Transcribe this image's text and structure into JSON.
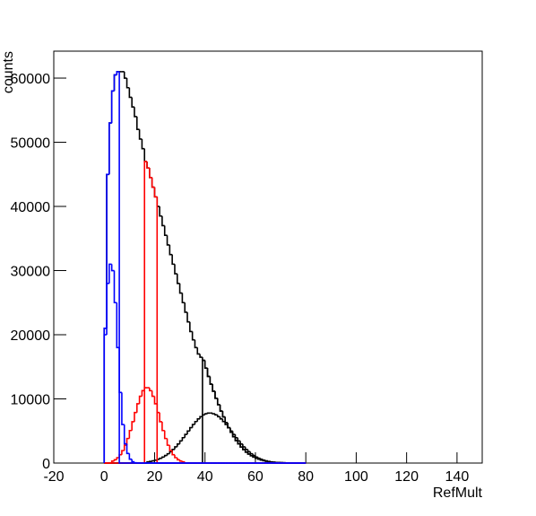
{
  "chart_data": {
    "type": "histogram",
    "xlabel": "RefMult",
    "ylabel": "counts",
    "xlim": [
      -20,
      150
    ],
    "ylim": [
      0,
      64200
    ],
    "xticks": [
      -20,
      0,
      20,
      40,
      60,
      80,
      100,
      120,
      140
    ],
    "yticks": [
      0,
      10000,
      20000,
      30000,
      40000,
      50000,
      60000
    ],
    "bins": [
      0,
      1,
      2,
      3,
      4,
      5,
      6,
      7,
      8,
      9,
      10,
      11,
      12,
      13,
      14,
      15,
      16,
      17,
      18,
      19,
      20,
      21,
      22,
      23,
      24,
      25,
      26,
      27,
      28,
      29,
      30,
      31,
      32,
      33,
      34,
      35,
      36,
      37,
      38,
      39,
      40,
      41,
      42,
      43,
      44,
      45,
      46,
      47,
      48,
      49,
      50,
      51,
      52,
      53,
      54,
      55,
      56,
      57,
      58,
      59,
      60,
      61,
      62,
      63,
      64,
      65,
      66,
      67,
      68,
      69,
      70,
      71,
      72,
      73,
      74,
      75,
      76,
      77,
      78,
      79,
      80
    ],
    "series": [
      {
        "color": "#000000",
        "values": [
          21000,
          45000,
          53000,
          58000,
          60500,
          61000,
          61000,
          61000,
          60000,
          58500,
          57000,
          55500,
          54000,
          52000,
          50500,
          49000,
          47000,
          46000,
          44500,
          43000,
          41500,
          40000,
          38500,
          37000,
          35500,
          34000,
          32500,
          31000,
          29500,
          28000,
          26500,
          25000,
          23500,
          22000,
          20500,
          19200,
          18000,
          17000,
          16500,
          16000,
          14800,
          13500,
          12300,
          11200,
          10100,
          9100,
          8100,
          7200,
          6300,
          5500,
          4800,
          4100,
          3500,
          3000,
          2500,
          2100,
          1700,
          1400,
          1150,
          930,
          750,
          600,
          470,
          370,
          290,
          220,
          170,
          130,
          100,
          75,
          55,
          40,
          30,
          20,
          15,
          10,
          7,
          5,
          3,
          2
        ]
      },
      {
        "color": "#000000",
        "values": [
          0,
          0,
          0,
          0,
          0,
          0,
          0,
          0,
          0,
          0,
          0,
          0,
          0,
          0,
          0,
          0,
          0,
          0,
          0,
          0,
          0,
          0,
          0,
          0,
          0,
          0,
          0,
          0,
          0,
          0,
          0,
          0,
          0,
          0,
          0,
          0,
          0,
          0,
          0,
          16000,
          14800,
          13500,
          12300,
          11200,
          10100,
          9100,
          8100,
          7200,
          6300,
          5500,
          4800,
          4100,
          3500,
          3000,
          2500,
          2100,
          1700,
          1400,
          1150,
          930,
          750,
          600,
          470,
          370,
          290,
          220,
          170,
          130,
          100,
          75,
          55,
          40,
          30,
          20,
          15,
          10,
          7,
          5,
          3,
          2
        ]
      },
      {
        "color": "#000000",
        "values": [
          0,
          0,
          0,
          0,
          0,
          0,
          0,
          0,
          0,
          0,
          0,
          0,
          0,
          0,
          0,
          0,
          0,
          190,
          260,
          340,
          450,
          580,
          750,
          940,
          1180,
          1450,
          1770,
          2130,
          2530,
          2970,
          3450,
          3950,
          4470,
          4990,
          5510,
          6010,
          6470,
          6880,
          7230,
          7510,
          7690,
          7790,
          7790,
          7690,
          7510,
          7230,
          6880,
          6470,
          6010,
          5510,
          4990,
          4470,
          3950,
          3450,
          2970,
          2530,
          2130,
          1770,
          1450,
          1180,
          940,
          750,
          580,
          450,
          340,
          260,
          190,
          0,
          0,
          0,
          0,
          0,
          0,
          0,
          0,
          0,
          0,
          0,
          0,
          0
        ]
      },
      {
        "color": "#ff0000",
        "values": [
          0,
          0,
          0,
          0,
          0,
          0,
          0,
          0,
          0,
          0,
          0,
          0,
          0,
          0,
          0,
          0,
          47000,
          46000,
          44500,
          43000,
          41500,
          0,
          0,
          0,
          0,
          0,
          0,
          0,
          0,
          0,
          0,
          0,
          0,
          0,
          0,
          0,
          0,
          0,
          0,
          0,
          0,
          0,
          0,
          0,
          0,
          0,
          0,
          0,
          0,
          0,
          0,
          0,
          0,
          0,
          0,
          0,
          0,
          0,
          0,
          0,
          0,
          0,
          0,
          0,
          0,
          0,
          0,
          0,
          0,
          0,
          0,
          0,
          0,
          0,
          0,
          0,
          0,
          0,
          0,
          0
        ]
      },
      {
        "color": "#ff0000",
        "values": [
          0,
          0,
          0,
          310,
          520,
          840,
          1300,
          1940,
          2780,
          3830,
          5070,
          6440,
          7870,
          9240,
          10410,
          11280,
          11740,
          11740,
          11280,
          10410,
          9240,
          7870,
          6440,
          5070,
          3830,
          2780,
          1940,
          1300,
          840,
          520,
          310,
          180,
          0,
          0,
          0,
          0,
          0,
          0,
          0,
          0,
          0,
          0,
          0,
          0,
          0,
          0,
          0,
          0,
          0,
          0,
          0,
          0,
          0,
          0,
          0,
          0,
          0,
          0,
          0,
          0,
          0,
          0,
          0,
          0,
          0,
          0,
          0,
          0,
          0,
          0,
          0,
          0,
          0,
          0,
          0,
          0,
          0,
          0,
          0,
          0
        ]
      },
      {
        "color": "#0000ff",
        "values": [
          21000,
          45000,
          53000,
          58000,
          60500,
          61000,
          0,
          0,
          0,
          0,
          0,
          0,
          0,
          0,
          0,
          0,
          0,
          0,
          0,
          0,
          0,
          0,
          0,
          0,
          0,
          0,
          0,
          0,
          0,
          0,
          0,
          0,
          0,
          0,
          0,
          0,
          0,
          0,
          0,
          0,
          0,
          0,
          0,
          0,
          0,
          0,
          0,
          0,
          0,
          0,
          0,
          0,
          0,
          0,
          0,
          0,
          0,
          0,
          0,
          0,
          0,
          0,
          0,
          0,
          0,
          0,
          0,
          0,
          0,
          0,
          0,
          0,
          0,
          0,
          0,
          0,
          0,
          0,
          0,
          0
        ]
      },
      {
        "color": "#0000ff",
        "values": [
          20000,
          28000,
          31000,
          30000,
          25000,
          18000,
          11000,
          6000,
          3000,
          1500,
          600,
          200,
          50,
          0,
          0,
          0,
          0,
          0,
          0,
          0,
          0,
          0,
          0,
          0,
          0,
          0,
          0,
          0,
          0,
          0,
          0,
          0,
          0,
          0,
          0,
          0,
          0,
          0,
          0,
          0,
          0,
          0,
          0,
          0,
          0,
          0,
          0,
          0,
          0,
          0,
          0,
          0,
          0,
          0,
          0,
          0,
          0,
          0,
          0,
          0,
          0,
          0,
          0,
          0,
          0,
          0,
          0,
          0,
          0,
          0,
          0,
          0,
          0,
          0,
          0,
          0,
          0,
          0,
          0,
          0
        ]
      }
    ]
  }
}
